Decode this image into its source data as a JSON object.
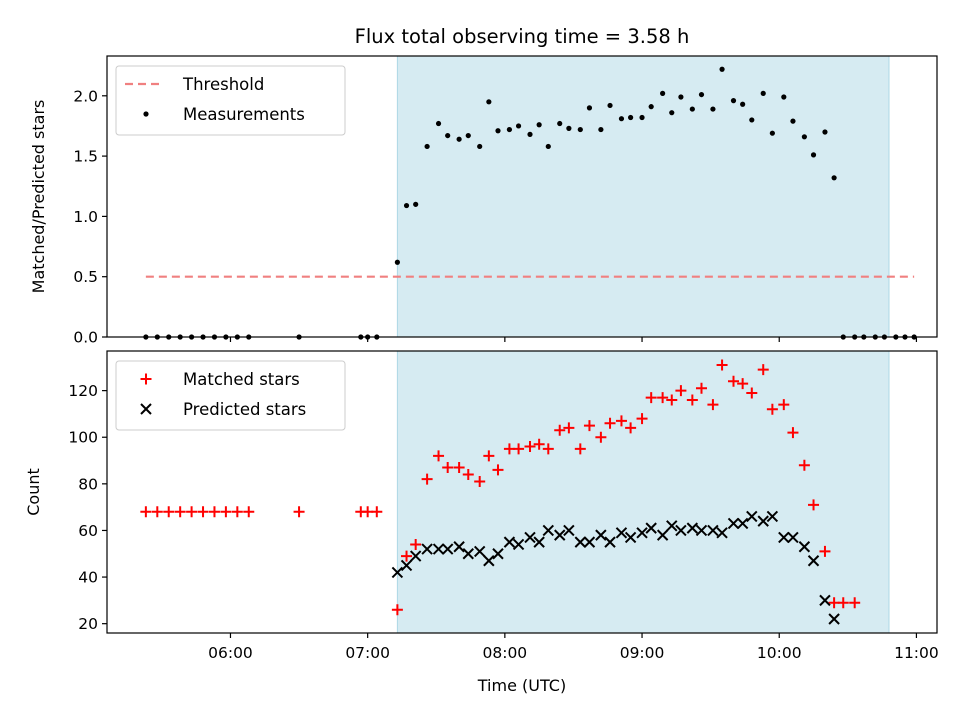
{
  "chart_data": {
    "title": "Flux total observing time = 3.58 h",
    "xlabel": "Time (UTC)",
    "x_unit": "hours UTC",
    "xlim": [
      "05:06",
      "11:09"
    ],
    "x_ticks": [
      {
        "value": "06:00",
        "label": "06:00"
      },
      {
        "value": "07:00",
        "label": "07:00"
      },
      {
        "value": "08:00",
        "label": "08:00"
      },
      {
        "value": "09:00",
        "label": "09:00"
      },
      {
        "value": "10:00",
        "label": "10:00"
      },
      {
        "value": "11:00",
        "label": "11:00"
      }
    ],
    "observing_window": {
      "start": "07:13",
      "end": "10:48",
      "color": "#add8e6"
    },
    "times": [
      "05:23",
      "05:28",
      "05:33",
      "05:38",
      "05:43",
      "05:48",
      "05:53",
      "05:58",
      "06:03",
      "06:08",
      "06:30",
      "06:57",
      "07:00",
      "07:04",
      "07:13",
      "07:17",
      "07:21",
      "07:26",
      "07:31",
      "07:35",
      "07:40",
      "07:44",
      "07:49",
      "07:53",
      "07:57",
      "08:02",
      "08:06",
      "08:11",
      "08:15",
      "08:19",
      "08:24",
      "08:28",
      "08:33",
      "08:37",
      "08:42",
      "08:46",
      "08:51",
      "08:55",
      "09:00",
      "09:04",
      "09:09",
      "09:13",
      "09:17",
      "09:22",
      "09:26",
      "09:31",
      "09:35",
      "09:40",
      "09:44",
      "09:48",
      "09:53",
      "09:57",
      "10:02",
      "10:06",
      "10:11",
      "10:15",
      "10:20",
      "10:24",
      "10:28",
      "10:33",
      "10:37",
      "10:42",
      "10:46",
      "10:51",
      "10:55",
      "10:59"
    ],
    "panels": [
      {
        "type": "scatter",
        "ylabel": "Matched/Predicted stars",
        "ylim": [
          0,
          2.33
        ],
        "y_ticks": [
          "0.0",
          "0.5",
          "1.0",
          "1.5",
          "2.0"
        ],
        "legend_position": "top-left",
        "threshold": {
          "name": "Threshold",
          "value": 0.5,
          "x_range": [
            "05:23",
            "10:59"
          ],
          "color": "#f08080",
          "style": "dashed"
        },
        "series": [
          {
            "name": "Measurements",
            "marker": "dot",
            "color": "#000000",
            "values": [
              0,
              0,
              0,
              0,
              0,
              0,
              0,
              0,
              0,
              0,
              0,
              0,
              0,
              0,
              0.62,
              1.09,
              1.1,
              1.58,
              1.77,
              1.67,
              1.64,
              1.67,
              1.58,
              1.95,
              1.71,
              1.72,
              1.75,
              1.68,
              1.76,
              1.58,
              1.77,
              1.73,
              1.72,
              1.9,
              1.72,
              1.92,
              1.81,
              1.82,
              1.82,
              1.91,
              2.02,
              1.86,
              1.99,
              1.89,
              2.01,
              1.89,
              2.22,
              1.96,
              1.93,
              1.8,
              2.02,
              1.69,
              1.99,
              1.79,
              1.66,
              1.51,
              1.7,
              1.32,
              0,
              0,
              0,
              0,
              0,
              0,
              0,
              0
            ]
          }
        ]
      },
      {
        "type": "scatter",
        "ylabel": "Count",
        "ylim": [
          16,
          137
        ],
        "y_ticks": [
          "20",
          "40",
          "60",
          "80",
          "100",
          "120"
        ],
        "legend_position": "top-left",
        "series": [
          {
            "name": "Matched stars",
            "marker": "plus",
            "color": "#ff0000",
            "values": [
              68,
              68,
              68,
              68,
              68,
              68,
              68,
              68,
              68,
              68,
              68,
              68,
              68,
              68,
              26,
              49,
              54,
              82,
              92,
              87,
              87,
              84,
              81,
              92,
              86,
              95,
              95,
              96,
              97,
              95,
              103,
              104,
              95,
              105,
              100,
              106,
              107,
              104,
              108,
              117,
              117,
              116,
              120,
              116,
              121,
              114,
              131,
              124,
              123,
              119,
              129,
              112,
              114,
              102,
              88,
              71,
              51,
              29,
              29,
              29,
              null,
              null,
              null,
              null,
              null,
              null
            ]
          },
          {
            "name": "Predicted stars",
            "marker": "x",
            "color": "#000000",
            "values": [
              null,
              null,
              null,
              null,
              null,
              null,
              null,
              null,
              null,
              null,
              null,
              null,
              null,
              null,
              42,
              45,
              49,
              52,
              52,
              52,
              53,
              50,
              51,
              47,
              50,
              55,
              54,
              57,
              55,
              60,
              58,
              60,
              55,
              55,
              58,
              55,
              59,
              57,
              59,
              61,
              58,
              62,
              60,
              61,
              60,
              60,
              59,
              63,
              63,
              66,
              64,
              66,
              57,
              57,
              53,
              47,
              30,
              22,
              null,
              null,
              null,
              null,
              null,
              null,
              null,
              null
            ]
          }
        ]
      }
    ]
  }
}
